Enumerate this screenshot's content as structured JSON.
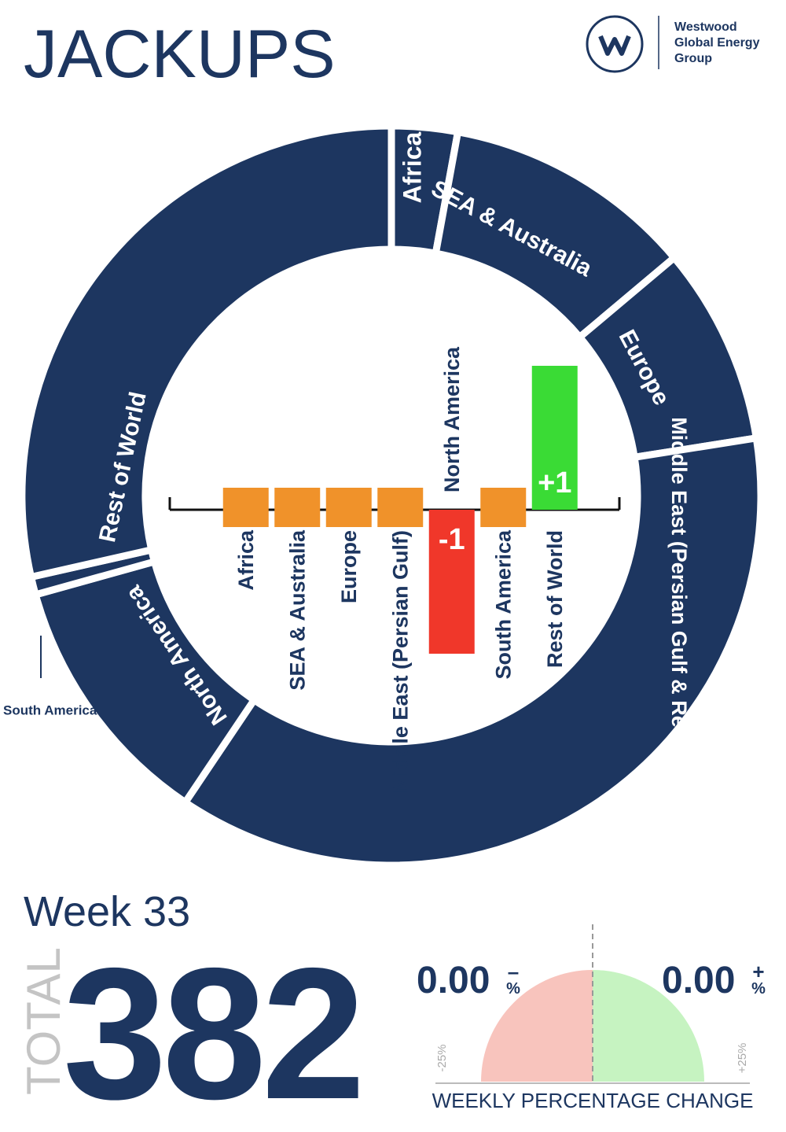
{
  "header": {
    "title": "JACKUPS",
    "logo_lines": [
      "Westwood",
      "Global Energy",
      "Group"
    ]
  },
  "chart_data": [
    {
      "type": "pie",
      "categories": [
        "Africa",
        "SEA & Australia",
        "Europe",
        "Middle East (Persian Gulf & Red Sea)",
        "North America",
        "South America",
        "Rest of World"
      ],
      "values": [
        11,
        42,
        33,
        141,
        43,
        3,
        109
      ],
      "color": "#1d3660"
    },
    {
      "type": "bar",
      "categories": [
        "Africa",
        "SEA & Australia",
        "Europe",
        "Middle East (Persian Gulf)",
        "North America",
        "South America",
        "Rest of World"
      ],
      "values": [
        0,
        0,
        0,
        0,
        -1,
        0,
        1
      ],
      "value_labels": [
        null,
        null,
        null,
        null,
        "-1",
        null,
        "+1"
      ],
      "ylim": [
        -1,
        1
      ],
      "colors": {
        "positive": "#3adb35",
        "negative": "#f0372a",
        "zero": "#f0922a"
      }
    }
  ],
  "summary": {
    "week": "Week 33",
    "total_label": "TOTAL",
    "total": 382,
    "gauge": {
      "title": "WEEKLY PERCENTAGE CHANGE",
      "xlim": [
        -25,
        25
      ],
      "xticks": [
        {
          "value": -25,
          "label": "-25%"
        },
        {
          "value": 25,
          "label": "+25%"
        }
      ],
      "negative": {
        "value": 0,
        "label": "0.00",
        "sign": "–",
        "unit": "%"
      },
      "positive": {
        "value": 0,
        "label": "0.00",
        "sign": "+",
        "unit": "%"
      }
    }
  }
}
